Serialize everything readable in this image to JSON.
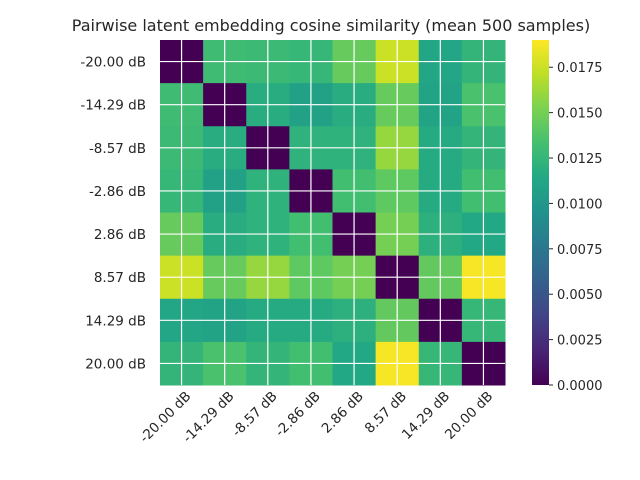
{
  "chart_data": {
    "type": "heatmap",
    "title": "Pairwise latent embedding cosine similarity (mean 500 samples)",
    "x_labels": [
      "-20.00 dB",
      "-14.29 dB",
      "-8.57 dB",
      "-2.86 dB",
      "2.86 dB",
      "8.57 dB",
      "14.29 dB",
      "20.00 dB"
    ],
    "y_labels": [
      "-20.00 dB",
      "-14.29 dB",
      "-8.57 dB",
      "-2.86 dB",
      "2.86 dB",
      "8.57 dB",
      "14.29 dB",
      "20.00 dB"
    ],
    "values": [
      [
        0.0,
        0.013,
        0.0128,
        0.0126,
        0.0145,
        0.0175,
        0.0112,
        0.0124
      ],
      [
        0.013,
        0.0,
        0.0118,
        0.0108,
        0.0118,
        0.0145,
        0.011,
        0.0135
      ],
      [
        0.0128,
        0.0118,
        0.0,
        0.0122,
        0.0122,
        0.016,
        0.0116,
        0.0124
      ],
      [
        0.0126,
        0.0108,
        0.0122,
        0.0,
        0.0132,
        0.0142,
        0.0116,
        0.0132
      ],
      [
        0.0145,
        0.0118,
        0.0122,
        0.0132,
        0.0,
        0.015,
        0.012,
        0.0114
      ],
      [
        0.0175,
        0.0145,
        0.016,
        0.0142,
        0.015,
        0.0,
        0.0144,
        0.0188
      ],
      [
        0.0112,
        0.011,
        0.0116,
        0.0116,
        0.012,
        0.0144,
        0.0,
        0.0126
      ],
      [
        0.0124,
        0.0135,
        0.0124,
        0.0132,
        0.0114,
        0.0188,
        0.0126,
        0.0
      ]
    ],
    "colormap": "viridis",
    "vmin": 0.0,
    "vmax": 0.019,
    "colorbar_ticks": [
      "0.0000",
      "0.0025",
      "0.0050",
      "0.0075",
      "0.0100",
      "0.0125",
      "0.0150",
      "0.0175"
    ],
    "grid": true,
    "grid_color": "#ffffff"
  }
}
